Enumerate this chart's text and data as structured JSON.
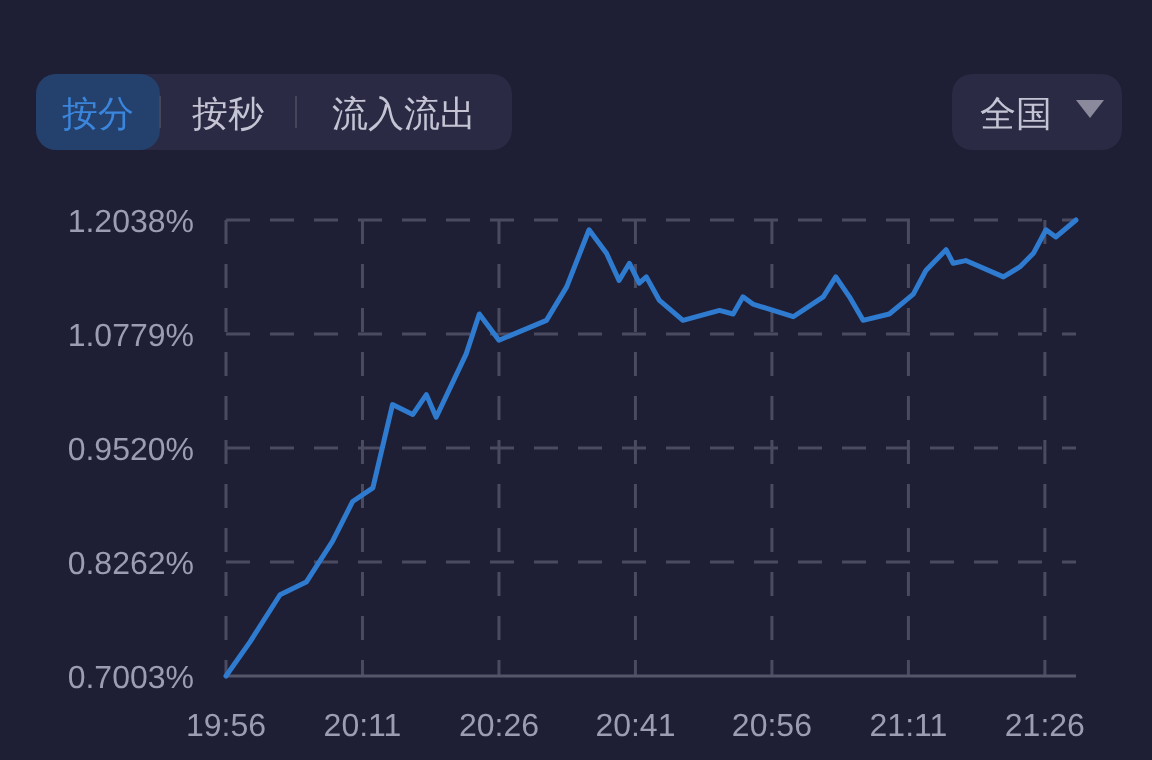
{
  "chart_data": {
    "type": "line",
    "annotations": [
      "按分",
      "按秒",
      "流入流出",
      "全国"
    ],
    "x": [
      19.933,
      19.977,
      20.032,
      20.08,
      20.128,
      20.165,
      20.202,
      20.238,
      20.275,
      20.3,
      20.318,
      20.373,
      20.397,
      20.433,
      20.52,
      20.557,
      20.598,
      20.63,
      20.653,
      20.672,
      20.69,
      20.703,
      20.727,
      20.77,
      20.837,
      20.862,
      20.88,
      20.898,
      20.972,
      21.027,
      21.05,
      21.075,
      21.1,
      21.148,
      21.192,
      21.215,
      21.252,
      21.265,
      21.288,
      21.357,
      21.387,
      21.412,
      21.435,
      21.453,
      21.49
    ],
    "series": [
      {
        "color": "#2e7bd0",
        "values": [
          0.7003,
          0.738,
          0.79,
          0.804,
          0.849,
          0.893,
          0.908,
          1.0,
          0.989,
          1.011,
          0.986,
          1.056,
          1.1,
          1.071,
          1.093,
          1.13,
          1.193,
          1.167,
          1.137,
          1.156,
          1.134,
          1.141,
          1.115,
          1.093,
          1.104,
          1.1,
          1.119,
          1.111,
          1.097,
          1.119,
          1.141,
          1.119,
          1.093,
          1.1,
          1.122,
          1.148,
          1.171,
          1.156,
          1.159,
          1.141,
          1.152,
          1.167,
          1.193,
          1.185,
          1.2038
        ]
      }
    ],
    "xlim": [
      19.933,
      21.49
    ],
    "xticks": [
      {
        "value": 19.933,
        "label": "19:56"
      },
      {
        "value": 20.183,
        "label": "20:11"
      },
      {
        "value": 20.433,
        "label": "20:26"
      },
      {
        "value": 20.683,
        "label": "20:41"
      },
      {
        "value": 20.933,
        "label": "20:56"
      },
      {
        "value": 21.183,
        "label": "21:11"
      },
      {
        "value": 21.433,
        "label": "21:26"
      }
    ],
    "ylim": [
      0.7003,
      1.2038
    ],
    "yticks": [
      {
        "value": 0.7003,
        "label": "0.7003%"
      },
      {
        "value": 0.8262,
        "label": "0.8262%"
      },
      {
        "value": 0.952,
        "label": "0.9520%"
      },
      {
        "value": 1.0779,
        "label": "1.0779%"
      },
      {
        "value": 1.2038,
        "label": "1.2038%"
      }
    ],
    "grid": true,
    "line_style": "solid"
  }
}
